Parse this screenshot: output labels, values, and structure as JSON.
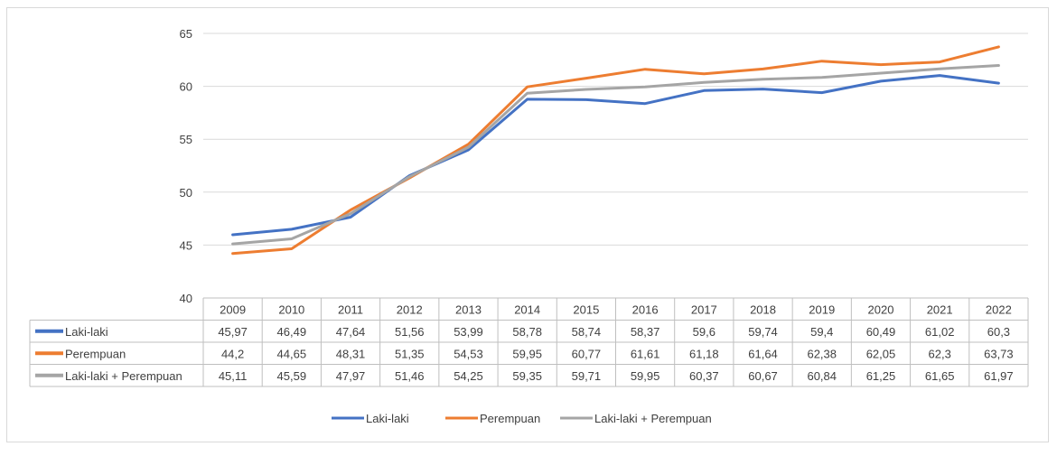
{
  "chart_data": {
    "type": "line",
    "title": "",
    "xlabel": "",
    "ylabel": "",
    "ylim": [
      40,
      65
    ],
    "yticks": [
      40,
      45,
      50,
      55,
      60,
      65
    ],
    "grid": true,
    "legend_position": "bottom",
    "categories": [
      "2009",
      "2010",
      "2011",
      "2012",
      "2013",
      "2014",
      "2015",
      "2016",
      "2017",
      "2018",
      "2019",
      "2020",
      "2021",
      "2022"
    ],
    "series": [
      {
        "name": "Laki-laki",
        "color": "#4472c4",
        "values": [
          45.97,
          46.49,
          47.64,
          51.56,
          53.99,
          58.78,
          58.74,
          58.37,
          59.6,
          59.74,
          59.4,
          60.49,
          61.02,
          60.3
        ],
        "labels": [
          "45,97",
          "46,49",
          "47,64",
          "51,56",
          "53,99",
          "58,78",
          "58,74",
          "58,37",
          "59,6",
          "59,74",
          "59,4",
          "60,49",
          "61,02",
          "60,3"
        ]
      },
      {
        "name": "Perempuan",
        "color": "#ed7d31",
        "values": [
          44.2,
          44.65,
          48.31,
          51.35,
          54.53,
          59.95,
          60.77,
          61.61,
          61.18,
          61.64,
          62.38,
          62.05,
          62.3,
          63.73
        ],
        "labels": [
          "44,2",
          "44,65",
          "48,31",
          "51,35",
          "54,53",
          "59,95",
          "60,77",
          "61,61",
          "61,18",
          "61,64",
          "62,38",
          "62,05",
          "62,3",
          "63,73"
        ]
      },
      {
        "name": "Laki-laki + Perempuan",
        "color": "#a5a5a5",
        "values": [
          45.11,
          45.59,
          47.97,
          51.46,
          54.25,
          59.35,
          59.71,
          59.95,
          60.37,
          60.67,
          60.84,
          61.25,
          61.65,
          61.97
        ],
        "labels": [
          "45,11",
          "45,59",
          "47,97",
          "51,46",
          "54,25",
          "59,35",
          "59,71",
          "59,95",
          "60,37",
          "60,67",
          "60,84",
          "61,25",
          "61,65",
          "61,97"
        ]
      }
    ]
  }
}
